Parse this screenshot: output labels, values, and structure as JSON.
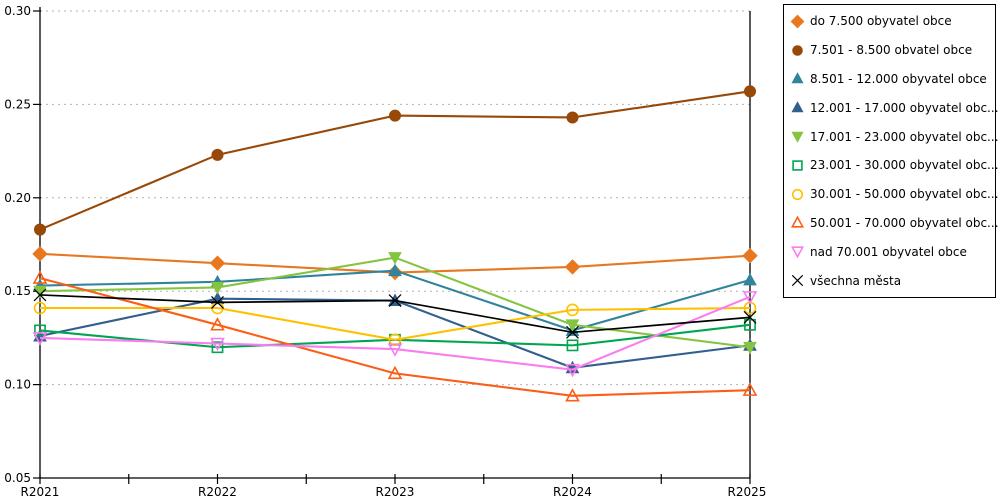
{
  "chart_data": {
    "type": "line",
    "title": "",
    "xlabel": "",
    "ylabel": "",
    "x_categories": [
      "R2021",
      "R2022",
      "R2023",
      "R2024",
      "R2025"
    ],
    "ylim": [
      0.05,
      0.3
    ],
    "y_ticks": [
      "0.30",
      "0.25",
      "0.20",
      "0.15",
      "0.10",
      "0.05"
    ],
    "y_tick_values": [
      0.3,
      0.25,
      0.2,
      0.15,
      0.1,
      0.05
    ],
    "grid": "horizontal-dashed",
    "legend_position": "right",
    "series": [
      {
        "name": "do 7.500 obyvatel obce",
        "marker": "diamond",
        "fill": "solid",
        "color": "#E87820",
        "values": [
          0.17,
          0.165,
          0.16,
          0.163,
          0.169
        ]
      },
      {
        "name": "7.501 - 8.500 obvatel obce",
        "marker": "circle",
        "fill": "solid",
        "color": "#984807",
        "values": [
          0.183,
          0.223,
          0.244,
          0.243,
          0.257
        ]
      },
      {
        "name": "8.501 - 12.000 obyvatel obce",
        "marker": "triangle-up",
        "fill": "solid",
        "color": "#31849B",
        "values": [
          0.153,
          0.155,
          0.161,
          0.129,
          0.156
        ]
      },
      {
        "name": "12.001 - 17.000 obyvatel obc...",
        "marker": "triangle-up",
        "fill": "solid",
        "color": "#31608F",
        "values": [
          0.126,
          0.146,
          0.145,
          0.109,
          0.121
        ]
      },
      {
        "name": "17.001 - 23.000 obyvatel obc...",
        "marker": "triangle-down",
        "fill": "solid",
        "color": "#84C441",
        "values": [
          0.15,
          0.152,
          0.168,
          0.132,
          0.12
        ]
      },
      {
        "name": "23.001 - 30.000 obyvatel obc...",
        "marker": "square",
        "fill": "open",
        "color": "#00A551",
        "values": [
          0.129,
          0.12,
          0.124,
          0.121,
          0.132
        ]
      },
      {
        "name": "30.001 - 50.000 obyvatel obc...",
        "marker": "circle",
        "fill": "open",
        "color": "#FFC000",
        "values": [
          0.141,
          0.141,
          0.124,
          0.14,
          0.141
        ]
      },
      {
        "name": "50.001 - 70.000 obyvatel obc...",
        "marker": "triangle-up",
        "fill": "open",
        "color": "#FC5E16",
        "values": [
          0.157,
          0.132,
          0.106,
          0.094,
          0.097
        ]
      },
      {
        "name": "nad 70.001 obyvatel obce",
        "marker": "triangle-down",
        "fill": "open",
        "color": "#FA7CEE",
        "values": [
          0.125,
          0.122,
          0.119,
          0.108,
          0.147
        ]
      },
      {
        "name": "všechna města",
        "marker": "x",
        "fill": "open",
        "color": "#000000",
        "values": [
          0.148,
          0.144,
          0.145,
          0.128,
          0.136
        ]
      }
    ],
    "colors": {
      "axis": "#000000",
      "gridline": "#B3B3B3",
      "background": "#FFFFFF"
    }
  }
}
